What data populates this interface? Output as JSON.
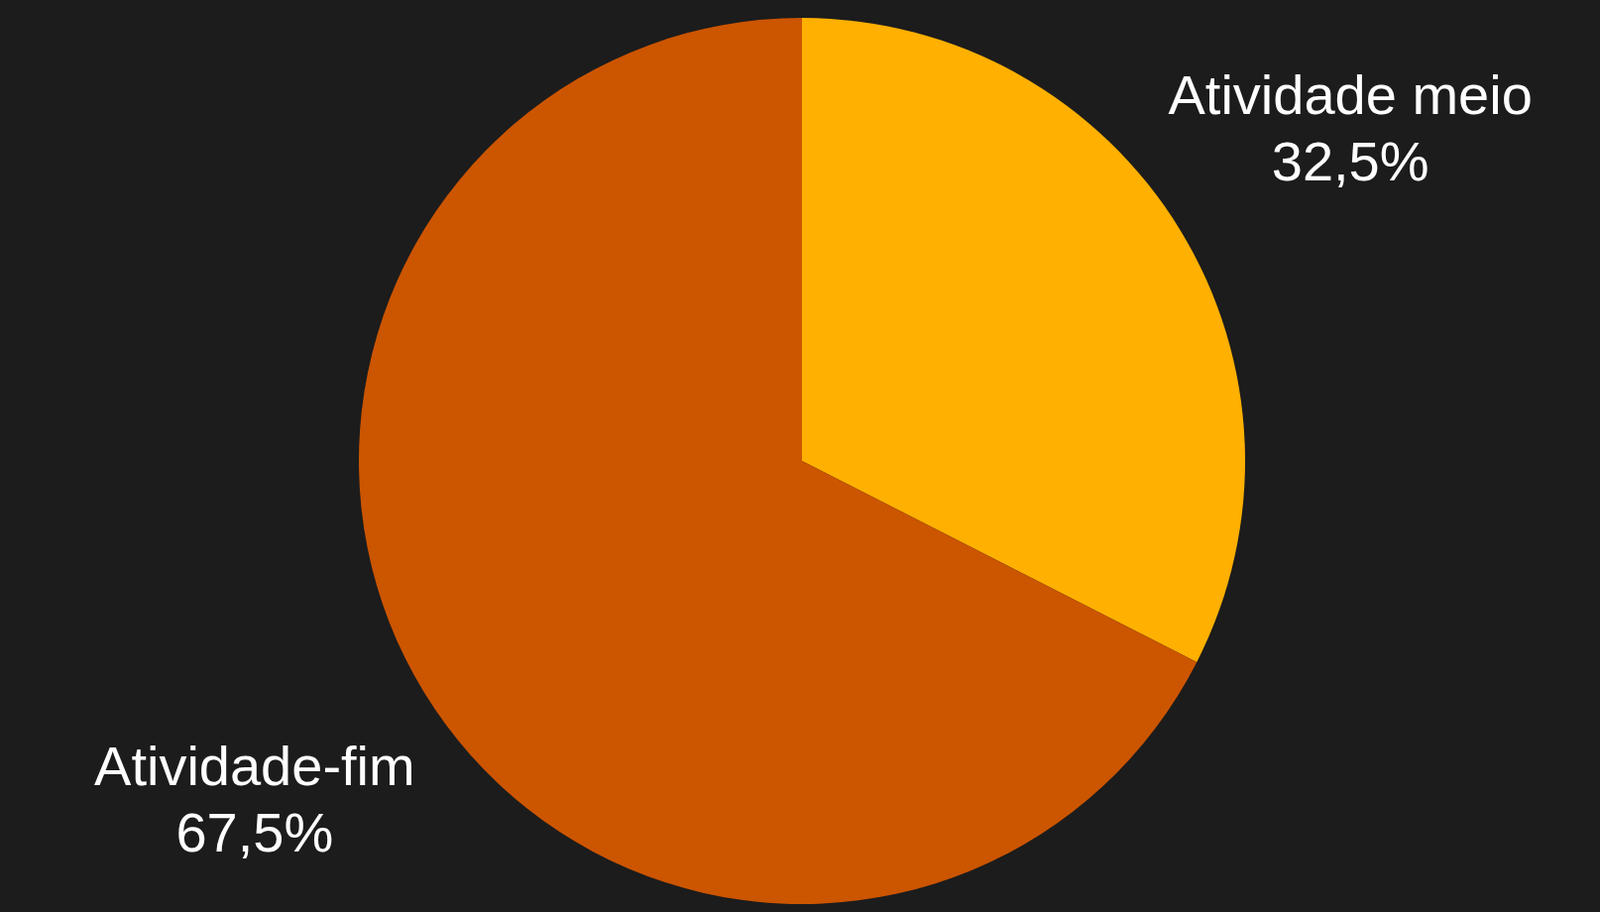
{
  "chart_data": {
    "type": "pie",
    "categories": [
      "Atividade meio",
      "Atividade-fim"
    ],
    "values": [
      32.5,
      67.5
    ],
    "value_labels": [
      "32,5%",
      "67,5%"
    ],
    "colors": [
      "#FFB000",
      "#CC5500"
    ],
    "data_labels": true
  }
}
